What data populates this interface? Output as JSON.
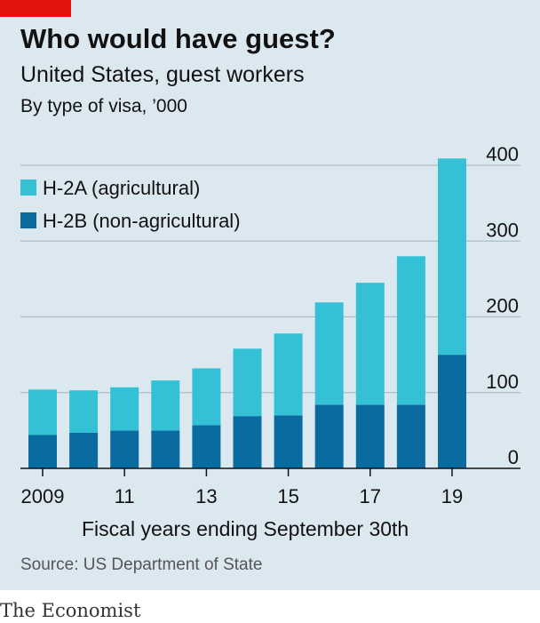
{
  "header": {
    "title": "Who would have guest?",
    "subtitle": "United States, guest workers",
    "units": "By type of visa, ’000"
  },
  "chart_data": {
    "type": "bar",
    "stacked": true,
    "categories": [
      "2009",
      "2010",
      "2011",
      "2012",
      "2013",
      "2014",
      "2015",
      "2016",
      "2017",
      "2018",
      "2019"
    ],
    "x_tick_labels": [
      "2009",
      "",
      "11",
      "",
      "13",
      "",
      "15",
      "",
      "17",
      "",
      "19"
    ],
    "series": [
      {
        "name": "H-2B (non-agricultural)",
        "color": "#0a6c9e",
        "values": [
          44,
          47,
          50,
          50,
          57,
          69,
          70,
          84,
          84,
          84,
          150
        ]
      },
      {
        "name": "H-2A (agricultural)",
        "color": "#34c1d6",
        "values": [
          60,
          56,
          57,
          66,
          75,
          89,
          108,
          135,
          161,
          196,
          259
        ]
      }
    ],
    "ylim": [
      0,
      400
    ],
    "yticks": [
      0,
      100,
      200,
      300,
      400
    ],
    "xlabel": "Fiscal years ending September 30th",
    "ylabel": "",
    "grid": true,
    "y_axis_side": "right",
    "legend_position": "top-left"
  },
  "source": "Source: US Department of State",
  "publisher": "The Economist"
}
